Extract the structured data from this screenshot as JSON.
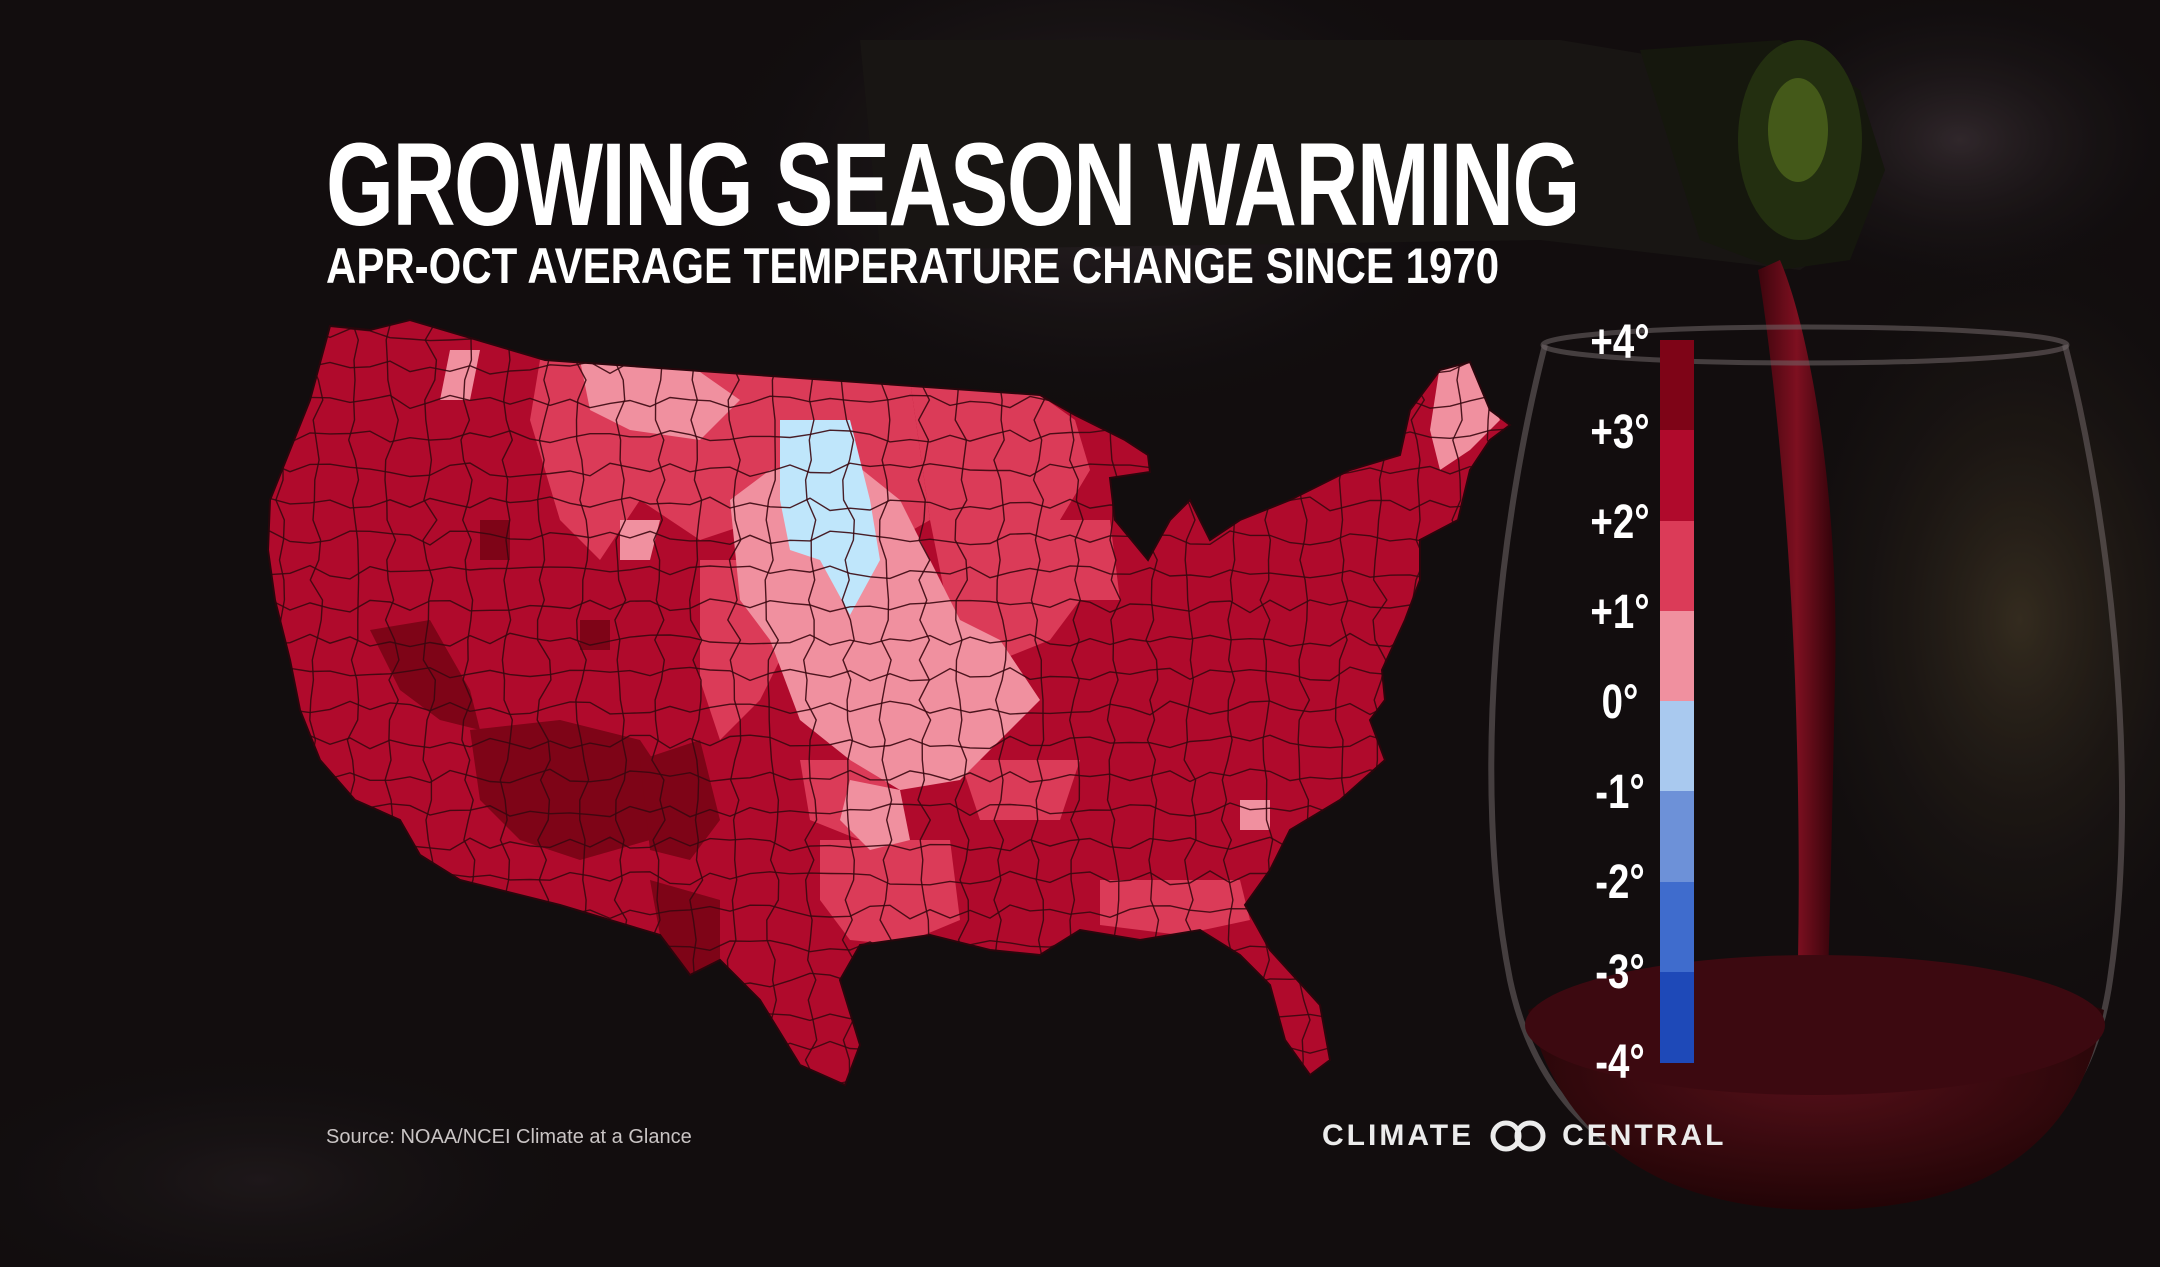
{
  "title": "GROWING SEASON WARMING",
  "subtitle": "APR-OCT AVERAGE TEMPERATURE CHANGE SINCE 1970",
  "legend": {
    "labels": [
      "+4°",
      "+3°",
      "+2°",
      "+1°",
      "0°",
      "-1°",
      "-2°",
      "-3°",
      "-4°"
    ],
    "colors": [
      "#7e0417",
      "#b00a2c",
      "#db3b58",
      "#f0909f",
      "#a9c9ef",
      "#6d91d8",
      "#3f6ccd",
      "#1e49b8"
    ]
  },
  "source": "Source: NOAA/NCEI Climate at a Glance",
  "brand": {
    "left": "CLIMATE",
    "right": "CENTRAL",
    "mark": "climate-central-logo-icon"
  },
  "map_colors": {
    "plus_3_4": "#7e0417",
    "plus_2_3": "#b00a2c",
    "plus_1_2": "#db3b58",
    "zero_1": "#f0909f",
    "minus_0_1": "#bfe6fb",
    "border": "#3a0810"
  },
  "background": {
    "image": "wine-pouring-photo",
    "glass": "wine-glass-icon",
    "bottle": "wine-bottle-icon"
  }
}
